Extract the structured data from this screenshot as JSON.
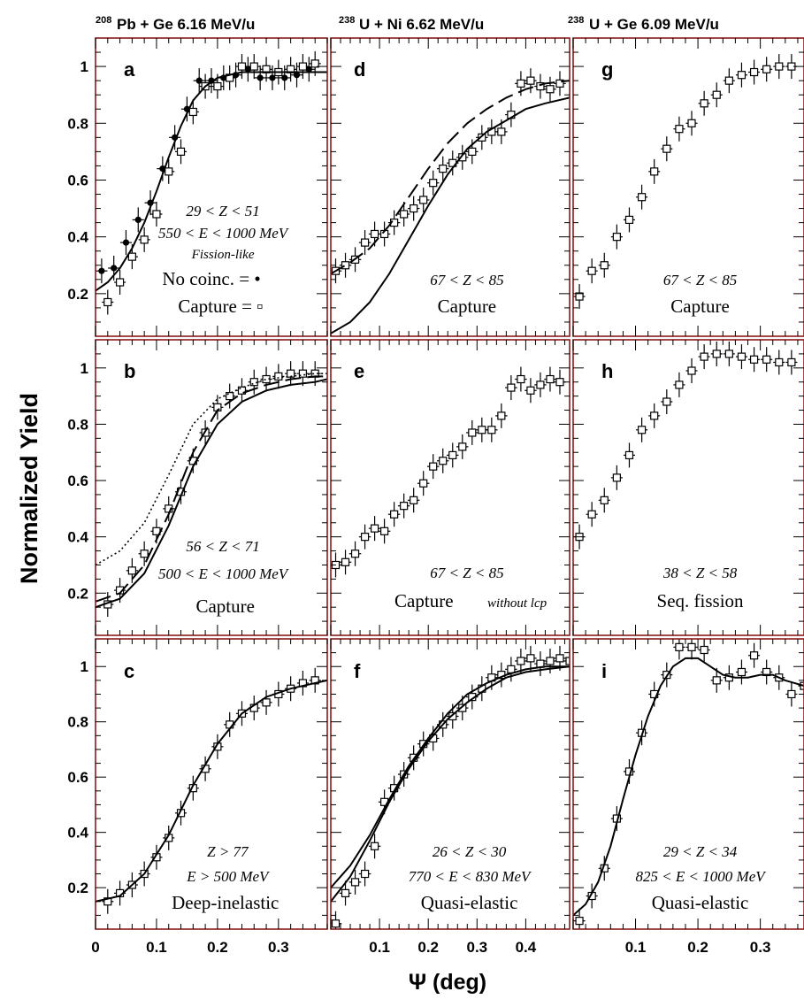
{
  "figure": {
    "column_headers": [
      {
        "sup": "208",
        "text": "Pb + Ge  6.16 MeV/u"
      },
      {
        "sup": "238",
        "text": "U + Ni  6.62 MeV/u"
      },
      {
        "sup": "238",
        "text": "U + Ge  6.09 MeV/u"
      }
    ],
    "ylabel": "Normalized Yield",
    "xlabel": "Ψ  (deg)",
    "frame_color": "#8b1a1a"
  },
  "chart_data": [
    {
      "type": "scatter",
      "panel": "a",
      "xlim": [
        0,
        0.38
      ],
      "ylim": [
        0.05,
        1.1
      ],
      "x_ticks": [],
      "y_ticks": [
        "0.2",
        "0.4",
        "0.6",
        "0.8",
        "1"
      ],
      "annotations": [
        {
          "text": "29 < Z < 51",
          "style": "ital"
        },
        {
          "text": "550 < E < 1000 MeV",
          "style": "ital"
        },
        {
          "text": "Fission-like",
          "style": "ital-sm"
        },
        {
          "text": "No coinc. = •",
          "style": "roman"
        },
        {
          "text": "Capture    = ▫",
          "style": "roman"
        }
      ],
      "series": [
        {
          "name": "No coinc.",
          "marker": "filled-circle",
          "x": [
            0.01,
            0.03,
            0.05,
            0.07,
            0.09,
            0.11,
            0.13,
            0.15,
            0.17,
            0.19,
            0.21,
            0.23,
            0.25,
            0.27,
            0.29,
            0.31,
            0.33,
            0.35
          ],
          "y": [
            0.28,
            0.29,
            0.38,
            0.46,
            0.52,
            0.64,
            0.75,
            0.85,
            0.95,
            0.95,
            0.96,
            0.97,
            0.99,
            0.96,
            0.96,
            0.96,
            0.97,
            0.99
          ]
        },
        {
          "name": "Capture",
          "marker": "open-square",
          "x": [
            0.02,
            0.04,
            0.06,
            0.08,
            0.1,
            0.12,
            0.14,
            0.16,
            0.18,
            0.2,
            0.22,
            0.24,
            0.26,
            0.28,
            0.3,
            0.32,
            0.34,
            0.36
          ],
          "y": [
            0.17,
            0.24,
            0.33,
            0.39,
            0.48,
            0.63,
            0.7,
            0.84,
            0.93,
            0.93,
            0.96,
            1.0,
            1.0,
            0.99,
            0.98,
            0.99,
            1.0,
            1.01
          ]
        },
        {
          "marker": "line-solid",
          "x": [
            0.0,
            0.02,
            0.04,
            0.06,
            0.08,
            0.1,
            0.12,
            0.14,
            0.16,
            0.18,
            0.2,
            0.24,
            0.28,
            0.38
          ],
          "y": [
            0.21,
            0.24,
            0.29,
            0.36,
            0.45,
            0.56,
            0.68,
            0.79,
            0.88,
            0.93,
            0.96,
            0.98,
            0.98,
            0.98
          ]
        }
      ]
    },
    {
      "type": "scatter",
      "panel": "b",
      "xlim": [
        0,
        0.38
      ],
      "ylim": [
        0.05,
        1.1
      ],
      "x_ticks": [],
      "y_ticks": [
        "0.2",
        "0.4",
        "0.6",
        "0.8",
        "1"
      ],
      "annotations": [
        {
          "text": "56 < Z < 71",
          "style": "ital"
        },
        {
          "text": "500 < E < 1000 MeV",
          "style": "ital"
        },
        {
          "text": "Capture",
          "style": "roman"
        }
      ],
      "series": [
        {
          "marker": "open-square",
          "x": [
            0.02,
            0.04,
            0.06,
            0.08,
            0.1,
            0.12,
            0.14,
            0.16,
            0.18,
            0.2,
            0.22,
            0.24,
            0.26,
            0.28,
            0.3,
            0.32,
            0.34,
            0.36
          ],
          "y": [
            0.16,
            0.21,
            0.28,
            0.34,
            0.42,
            0.5,
            0.56,
            0.67,
            0.77,
            0.86,
            0.9,
            0.92,
            0.95,
            0.96,
            0.97,
            0.98,
            0.98,
            0.98
          ]
        },
        {
          "marker": "line-solid",
          "x": [
            0.0,
            0.04,
            0.08,
            0.12,
            0.16,
            0.2,
            0.24,
            0.28,
            0.32,
            0.36,
            0.38
          ],
          "y": [
            0.15,
            0.18,
            0.27,
            0.44,
            0.65,
            0.8,
            0.88,
            0.92,
            0.94,
            0.95,
            0.96
          ]
        },
        {
          "marker": "line-dashed",
          "x": [
            0.0,
            0.04,
            0.08,
            0.12,
            0.16,
            0.2,
            0.24,
            0.28,
            0.32,
            0.36,
            0.38
          ],
          "y": [
            0.17,
            0.2,
            0.3,
            0.48,
            0.7,
            0.85,
            0.91,
            0.94,
            0.96,
            0.97,
            0.97
          ]
        },
        {
          "marker": "line-dotted",
          "x": [
            0.0,
            0.04,
            0.08,
            0.12,
            0.16,
            0.2,
            0.24,
            0.28,
            0.32,
            0.36,
            0.38
          ],
          "y": [
            0.3,
            0.35,
            0.45,
            0.62,
            0.8,
            0.89,
            0.93,
            0.96,
            0.97,
            0.98,
            0.98
          ]
        }
      ]
    },
    {
      "type": "scatter",
      "panel": "c",
      "xlim": [
        0,
        0.38
      ],
      "ylim": [
        0.05,
        1.1
      ],
      "x_ticks": [
        "0",
        "0.1",
        "0.2",
        "0.3"
      ],
      "y_ticks": [
        "0.2",
        "0.4",
        "0.6",
        "0.8",
        "1"
      ],
      "annotations": [
        {
          "text": "Z > 77",
          "style": "ital"
        },
        {
          "text": "E > 500 MeV",
          "style": "ital"
        },
        {
          "text": "Deep-inelastic",
          "style": "roman"
        }
      ],
      "series": [
        {
          "marker": "open-square",
          "x": [
            0.02,
            0.04,
            0.06,
            0.08,
            0.1,
            0.12,
            0.14,
            0.16,
            0.18,
            0.2,
            0.22,
            0.24,
            0.26,
            0.28,
            0.3,
            0.32,
            0.34,
            0.36
          ],
          "y": [
            0.15,
            0.18,
            0.21,
            0.25,
            0.31,
            0.38,
            0.47,
            0.56,
            0.63,
            0.71,
            0.79,
            0.83,
            0.85,
            0.87,
            0.9,
            0.92,
            0.94,
            0.95
          ]
        },
        {
          "marker": "line-solid",
          "x": [
            0.0,
            0.04,
            0.08,
            0.12,
            0.16,
            0.2,
            0.24,
            0.28,
            0.32,
            0.38
          ],
          "y": [
            0.15,
            0.17,
            0.25,
            0.39,
            0.57,
            0.72,
            0.83,
            0.89,
            0.92,
            0.95
          ]
        }
      ]
    },
    {
      "type": "scatter",
      "panel": "d",
      "xlim": [
        0,
        0.49
      ],
      "ylim": [
        0.05,
        1.1
      ],
      "x_ticks": [],
      "y_ticks": [],
      "annotations": [
        {
          "text": "67 < Z < 85",
          "style": "ital"
        },
        {
          "text": "Capture",
          "style": "roman"
        }
      ],
      "series": [
        {
          "marker": "open-square",
          "x": [
            0.01,
            0.03,
            0.05,
            0.07,
            0.09,
            0.11,
            0.13,
            0.15,
            0.17,
            0.19,
            0.21,
            0.23,
            0.25,
            0.27,
            0.29,
            0.31,
            0.33,
            0.35,
            0.37,
            0.39,
            0.41,
            0.43,
            0.45,
            0.47
          ],
          "y": [
            0.28,
            0.3,
            0.32,
            0.38,
            0.41,
            0.41,
            0.45,
            0.48,
            0.5,
            0.53,
            0.59,
            0.64,
            0.66,
            0.68,
            0.7,
            0.75,
            0.77,
            0.77,
            0.83,
            0.94,
            0.95,
            0.93,
            0.92,
            0.94
          ]
        },
        {
          "marker": "line-solid",
          "x": [
            0.0,
            0.04,
            0.08,
            0.12,
            0.16,
            0.2,
            0.24,
            0.28,
            0.32,
            0.36,
            0.4,
            0.44,
            0.49
          ],
          "y": [
            0.06,
            0.1,
            0.17,
            0.27,
            0.39,
            0.51,
            0.62,
            0.71,
            0.77,
            0.81,
            0.85,
            0.87,
            0.89
          ]
        },
        {
          "marker": "line-dashed",
          "x": [
            0.0,
            0.04,
            0.08,
            0.12,
            0.16,
            0.2,
            0.24,
            0.28,
            0.32,
            0.36,
            0.4,
            0.44,
            0.49
          ],
          "y": [
            0.27,
            0.31,
            0.36,
            0.44,
            0.54,
            0.64,
            0.73,
            0.8,
            0.85,
            0.89,
            0.92,
            0.94,
            0.95
          ]
        }
      ]
    },
    {
      "type": "scatter",
      "panel": "e",
      "xlim": [
        0,
        0.49
      ],
      "ylim": [
        0.05,
        1.1
      ],
      "x_ticks": [],
      "y_ticks": [],
      "annotations": [
        {
          "text": "67 < Z < 85",
          "style": "ital"
        },
        {
          "text": "Capture",
          "style": "roman"
        },
        {
          "text": "without lcp",
          "style": "ital-sm"
        }
      ],
      "series": [
        {
          "marker": "open-square",
          "x": [
            0.01,
            0.03,
            0.05,
            0.07,
            0.09,
            0.11,
            0.13,
            0.15,
            0.17,
            0.19,
            0.21,
            0.23,
            0.25,
            0.27,
            0.29,
            0.31,
            0.33,
            0.35,
            0.37,
            0.39,
            0.41,
            0.43,
            0.45,
            0.47
          ],
          "y": [
            0.3,
            0.31,
            0.34,
            0.4,
            0.43,
            0.42,
            0.48,
            0.51,
            0.53,
            0.59,
            0.65,
            0.67,
            0.69,
            0.72,
            0.77,
            0.78,
            0.78,
            0.83,
            0.93,
            0.96,
            0.92,
            0.94,
            0.96,
            0.95
          ]
        }
      ]
    },
    {
      "type": "scatter",
      "panel": "f",
      "xlim": [
        0,
        0.49
      ],
      "ylim": [
        0.05,
        1.1
      ],
      "x_ticks": [
        "0.1",
        "0.2",
        "0.3",
        "0.4"
      ],
      "y_ticks": [],
      "annotations": [
        {
          "text": "26 < Z < 30",
          "style": "ital"
        },
        {
          "text": "770 < E < 830 MeV",
          "style": "ital"
        },
        {
          "text": "Quasi-elastic",
          "style": "roman"
        }
      ],
      "series": [
        {
          "marker": "open-square",
          "x": [
            0.01,
            0.03,
            0.05,
            0.07,
            0.09,
            0.11,
            0.13,
            0.15,
            0.17,
            0.19,
            0.21,
            0.23,
            0.25,
            0.27,
            0.29,
            0.31,
            0.33,
            0.35,
            0.37,
            0.39,
            0.41,
            0.43,
            0.45,
            0.47,
            0.49
          ],
          "y": [
            0.07,
            0.18,
            0.22,
            0.25,
            0.35,
            0.51,
            0.56,
            0.61,
            0.67,
            0.72,
            0.74,
            0.79,
            0.82,
            0.85,
            0.89,
            0.92,
            0.96,
            0.97,
            0.99,
            1.02,
            1.03,
            1.01,
            1.02,
            1.03,
            1.02
          ]
        },
        {
          "marker": "line-solid",
          "x": [
            0.0,
            0.04,
            0.08,
            0.12,
            0.16,
            0.2,
            0.24,
            0.28,
            0.32,
            0.36,
            0.4,
            0.44,
            0.49
          ],
          "y": [
            0.2,
            0.28,
            0.39,
            0.52,
            0.64,
            0.74,
            0.83,
            0.9,
            0.94,
            0.97,
            0.99,
            1.0,
            1.0
          ]
        },
        {
          "marker": "line-solid",
          "x": [
            0.0,
            0.04,
            0.08,
            0.12,
            0.16,
            0.2,
            0.24,
            0.28,
            0.32,
            0.36,
            0.4,
            0.44,
            0.49
          ],
          "y": [
            0.15,
            0.24,
            0.37,
            0.51,
            0.63,
            0.73,
            0.81,
            0.87,
            0.92,
            0.96,
            0.98,
            0.99,
            1.0
          ]
        }
      ]
    },
    {
      "type": "scatter",
      "panel": "g",
      "xlim": [
        0,
        0.37
      ],
      "ylim": [
        0.05,
        1.1
      ],
      "x_ticks": [],
      "y_ticks": [],
      "annotations": [
        {
          "text": "67 < Z < 85",
          "style": "ital"
        },
        {
          "text": "Capture",
          "style": "roman"
        }
      ],
      "series": [
        {
          "marker": "open-square",
          "x": [
            0.01,
            0.03,
            0.05,
            0.07,
            0.09,
            0.11,
            0.13,
            0.15,
            0.17,
            0.19,
            0.21,
            0.23,
            0.25,
            0.27,
            0.29,
            0.31,
            0.33,
            0.35
          ],
          "y": [
            0.19,
            0.28,
            0.3,
            0.4,
            0.46,
            0.54,
            0.63,
            0.71,
            0.78,
            0.8,
            0.87,
            0.9,
            0.95,
            0.97,
            0.98,
            0.99,
            1.0,
            1.0
          ]
        }
      ]
    },
    {
      "type": "scatter",
      "panel": "h",
      "xlim": [
        0,
        0.37
      ],
      "ylim": [
        0.05,
        1.1
      ],
      "x_ticks": [],
      "y_ticks": [],
      "annotations": [
        {
          "text": "38 < Z < 58",
          "style": "ital"
        },
        {
          "text": "Seq. fission",
          "style": "roman"
        }
      ],
      "series": [
        {
          "marker": "open-square",
          "x": [
            0.01,
            0.03,
            0.05,
            0.07,
            0.09,
            0.11,
            0.13,
            0.15,
            0.17,
            0.19,
            0.21,
            0.23,
            0.25,
            0.27,
            0.29,
            0.31,
            0.33,
            0.35
          ],
          "y": [
            0.4,
            0.48,
            0.53,
            0.61,
            0.69,
            0.78,
            0.83,
            0.88,
            0.94,
            0.99,
            1.04,
            1.05,
            1.05,
            1.04,
            1.03,
            1.03,
            1.02,
            1.02
          ]
        }
      ]
    },
    {
      "type": "scatter",
      "panel": "i",
      "xlim": [
        0,
        0.37
      ],
      "ylim": [
        0.05,
        1.1
      ],
      "x_ticks": [
        "0.1",
        "0.2",
        "0.3"
      ],
      "y_ticks": [],
      "annotations": [
        {
          "text": "29 < Z < 34",
          "style": "ital"
        },
        {
          "text": "825 < E < 1000 MeV",
          "style": "ital"
        },
        {
          "text": "Quasi-elastic",
          "style": "roman"
        }
      ],
      "series": [
        {
          "marker": "open-square",
          "x": [
            0.01,
            0.03,
            0.05,
            0.07,
            0.09,
            0.11,
            0.13,
            0.15,
            0.17,
            0.19,
            0.21,
            0.23,
            0.25,
            0.27,
            0.29,
            0.31,
            0.33,
            0.35,
            0.37
          ],
          "y": [
            0.08,
            0.17,
            0.27,
            0.45,
            0.62,
            0.76,
            0.9,
            0.97,
            1.07,
            1.07,
            1.06,
            0.95,
            0.96,
            0.98,
            1.04,
            0.98,
            0.96,
            0.9,
            0.93
          ]
        },
        {
          "marker": "line-solid",
          "x": [
            0.0,
            0.02,
            0.04,
            0.06,
            0.08,
            0.1,
            0.12,
            0.14,
            0.16,
            0.18,
            0.2,
            0.22,
            0.24,
            0.26,
            0.28,
            0.3,
            0.32,
            0.34,
            0.37
          ],
          "y": [
            0.1,
            0.14,
            0.22,
            0.35,
            0.52,
            0.68,
            0.82,
            0.93,
            1.0,
            1.03,
            1.03,
            1.0,
            0.97,
            0.96,
            0.96,
            0.97,
            0.97,
            0.95,
            0.93
          ]
        }
      ]
    }
  ]
}
